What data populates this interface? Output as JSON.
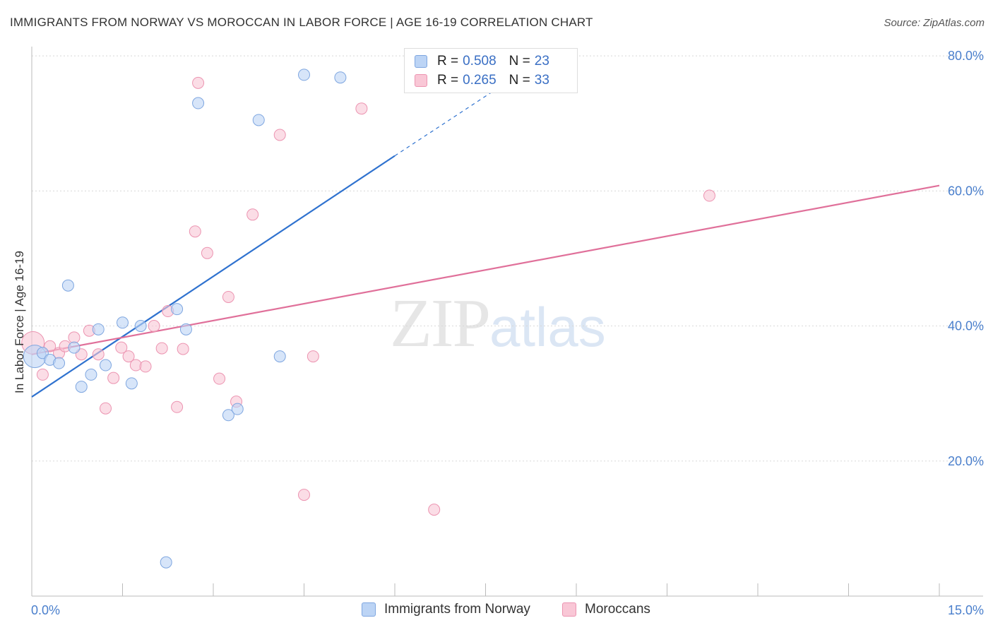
{
  "header": {
    "title": "IMMIGRANTS FROM NORWAY VS MOROCCAN IN LABOR FORCE | AGE 16-19 CORRELATION CHART",
    "source": "Source: ZipAtlas.com"
  },
  "watermark": {
    "zip": "ZIP",
    "atlas": "atlas"
  },
  "legend": {
    "rows": [
      {
        "r_label": "R = ",
        "r_value": "0.508",
        "n_label": "N = ",
        "n_value": "23"
      },
      {
        "r_label": "R = ",
        "r_value": "0.265",
        "n_label": "N = ",
        "n_value": "33"
      }
    ]
  },
  "bottom_legend": {
    "items": [
      "Immigrants from Norway",
      "Moroccans"
    ]
  },
  "colors": {
    "norway_fill": "#bcd4f5",
    "norway_stroke": "#7ea6e0",
    "norway_line": "#2f72cf",
    "moroccan_fill": "#f9c7d6",
    "moroccan_stroke": "#ec94b1",
    "moroccan_line": "#e0709a"
  },
  "chart_data": {
    "type": "scatter",
    "title": "IMMIGRANTS FROM NORWAY VS MOROCCAN IN LABOR FORCE | AGE 16-19 CORRELATION CHART",
    "xlabel": "",
    "ylabel": "In Labor Force | Age 16-19",
    "xlim": [
      0,
      15
    ],
    "ylim": [
      0,
      82
    ],
    "x_tick_labels": [
      {
        "value": 0,
        "label": "0.0%"
      },
      {
        "value": 15,
        "label": "15.0%"
      }
    ],
    "y_tick_labels": [
      {
        "value": 20,
        "label": "20.0%"
      },
      {
        "value": 40,
        "label": "40.0%"
      },
      {
        "value": 60,
        "label": "60.0%"
      },
      {
        "value": 80,
        "label": "80.0%"
      }
    ],
    "grid": true,
    "legend_position": "top-center",
    "series": [
      {
        "name": "Immigrants from Norway",
        "R": 0.508,
        "N": 23,
        "points": [
          {
            "x": 0.05,
            "y": 35.5,
            "big": true
          },
          {
            "x": 0.18,
            "y": 36.0
          },
          {
            "x": 0.3,
            "y": 35.0
          },
          {
            "x": 0.45,
            "y": 34.5
          },
          {
            "x": 0.6,
            "y": 46.0
          },
          {
            "x": 0.7,
            "y": 36.8
          },
          {
            "x": 0.82,
            "y": 31.0
          },
          {
            "x": 0.98,
            "y": 32.8
          },
          {
            "x": 1.1,
            "y": 39.5
          },
          {
            "x": 1.22,
            "y": 34.2
          },
          {
            "x": 1.5,
            "y": 40.5
          },
          {
            "x": 1.65,
            "y": 31.5
          },
          {
            "x": 1.8,
            "y": 40.0
          },
          {
            "x": 2.22,
            "y": 5.0
          },
          {
            "x": 2.4,
            "y": 42.5
          },
          {
            "x": 2.55,
            "y": 39.5
          },
          {
            "x": 2.75,
            "y": 73.0
          },
          {
            "x": 3.25,
            "y": 26.8
          },
          {
            "x": 3.4,
            "y": 27.7
          },
          {
            "x": 3.75,
            "y": 70.5
          },
          {
            "x": 4.1,
            "y": 35.5
          },
          {
            "x": 4.5,
            "y": 77.2
          },
          {
            "x": 5.1,
            "y": 76.8
          }
        ],
        "trend": {
          "x": [
            0,
            6.0,
            8.6
          ],
          "y": [
            29.5,
            65.2,
            80.5
          ],
          "solid_until": 6.0
        }
      },
      {
        "name": "Moroccans",
        "R": 0.265,
        "N": 33,
        "points": [
          {
            "x": 0.02,
            "y": 37.5,
            "big": true
          },
          {
            "x": 0.18,
            "y": 32.8
          },
          {
            "x": 0.3,
            "y": 37.0
          },
          {
            "x": 0.45,
            "y": 36.0
          },
          {
            "x": 0.55,
            "y": 37.0
          },
          {
            "x": 0.7,
            "y": 38.3
          },
          {
            "x": 0.82,
            "y": 35.8
          },
          {
            "x": 0.95,
            "y": 39.3
          },
          {
            "x": 1.1,
            "y": 35.8
          },
          {
            "x": 1.22,
            "y": 27.8
          },
          {
            "x": 1.35,
            "y": 32.3
          },
          {
            "x": 1.48,
            "y": 36.8
          },
          {
            "x": 1.6,
            "y": 35.5
          },
          {
            "x": 1.72,
            "y": 34.2
          },
          {
            "x": 1.88,
            "y": 34.0
          },
          {
            "x": 2.02,
            "y": 40.0
          },
          {
            "x": 2.15,
            "y": 36.7
          },
          {
            "x": 2.25,
            "y": 42.2
          },
          {
            "x": 2.4,
            "y": 28.0
          },
          {
            "x": 2.5,
            "y": 36.6
          },
          {
            "x": 2.7,
            "y": 54.0
          },
          {
            "x": 2.75,
            "y": 76.0
          },
          {
            "x": 2.9,
            "y": 50.8
          },
          {
            "x": 3.1,
            "y": 32.2
          },
          {
            "x": 3.25,
            "y": 44.3
          },
          {
            "x": 3.38,
            "y": 28.8
          },
          {
            "x": 3.65,
            "y": 56.5
          },
          {
            "x": 4.1,
            "y": 68.3
          },
          {
            "x": 4.5,
            "y": 15.0
          },
          {
            "x": 4.65,
            "y": 35.5
          },
          {
            "x": 5.45,
            "y": 72.2
          },
          {
            "x": 6.65,
            "y": 12.8
          },
          {
            "x": 11.2,
            "y": 59.3
          }
        ],
        "trend": {
          "x": [
            0,
            15
          ],
          "y": [
            35.8,
            60.8
          ]
        }
      }
    ]
  }
}
